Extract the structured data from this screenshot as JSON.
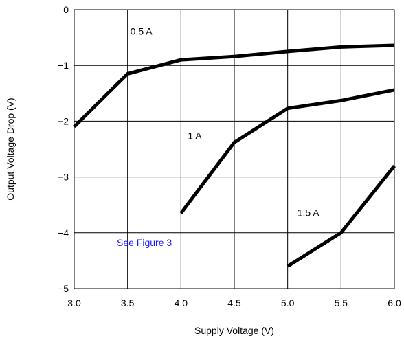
{
  "chart_data": {
    "type": "line",
    "xlabel": "Supply Voltage (V)",
    "ylabel": "Output Voltage Drop (V)",
    "xlim": [
      3.0,
      6.0
    ],
    "ylim": [
      -5,
      0
    ],
    "x_ticks": [
      "3.0",
      "3.5",
      "4.0",
      "4.5",
      "5.0",
      "5.5",
      "6.0"
    ],
    "y_ticks": [
      "0",
      "−1",
      "−2",
      "−3",
      "−4",
      "−5"
    ],
    "grid": true,
    "series": [
      {
        "name": "0.5 A",
        "x": [
          3.0,
          3.5,
          4.0,
          4.5,
          5.0,
          5.5,
          6.0
        ],
        "y": [
          -2.1,
          -1.15,
          -0.9,
          -0.84,
          -0.75,
          -0.67,
          -0.64
        ]
      },
      {
        "name": "1 A",
        "x": [
          4.0,
          4.5,
          5.0,
          5.5,
          6.0
        ],
        "y": [
          -3.65,
          -2.38,
          -1.77,
          -1.63,
          -1.44
        ]
      },
      {
        "name": "1.5 A",
        "x": [
          5.0,
          5.5,
          6.0
        ],
        "y": [
          -4.6,
          -4.0,
          -2.8
        ]
      }
    ],
    "annotations": [
      {
        "text": "See Figure 3",
        "color": "#1a1aff"
      }
    ],
    "line_color": "#000000"
  }
}
